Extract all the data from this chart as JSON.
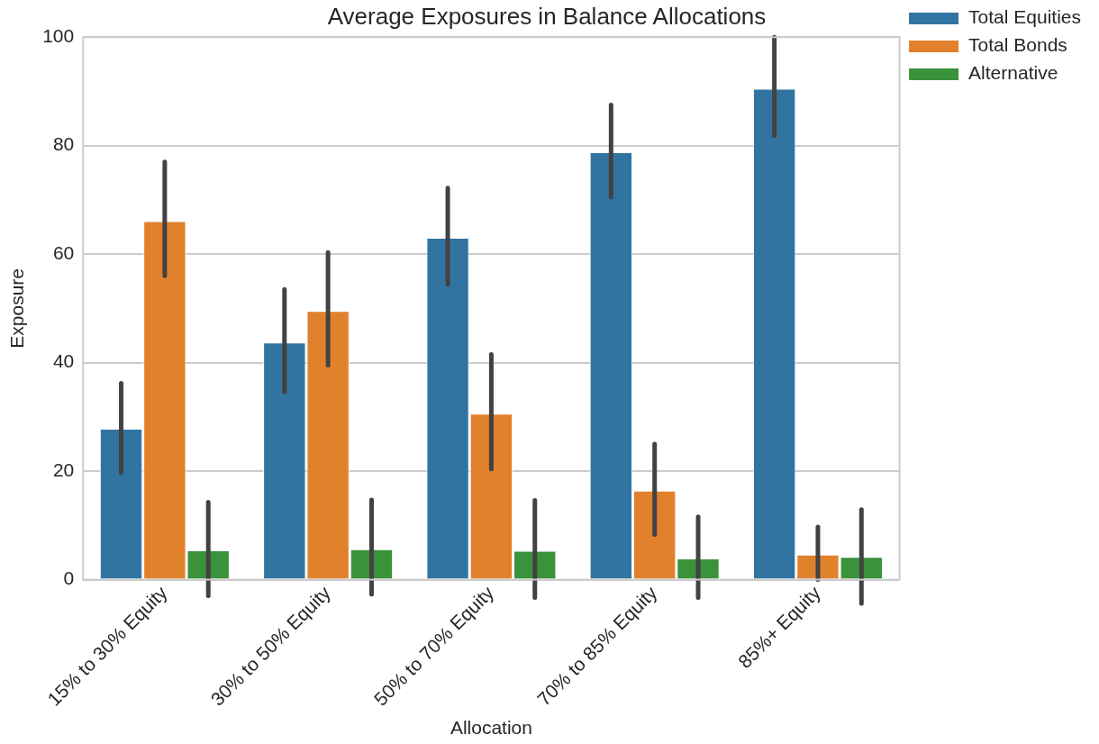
{
  "chart_data": {
    "type": "bar",
    "title": "Average Exposures in Balance Allocations",
    "xlabel": "Allocation",
    "ylabel": "Exposure",
    "categories": [
      "15% to 30% Equity",
      "30% to 50% Equity",
      "50% to 70% Equity",
      "70% to 85% Equity",
      "85%+ Equity"
    ],
    "series": [
      {
        "name": "Total Equities",
        "color": "#3274a1",
        "values": [
          27.8,
          43.7,
          63.0,
          78.8,
          90.5
        ],
        "errors": [
          [
            19.7,
            36.2
          ],
          [
            34.6,
            53.5
          ],
          [
            54.4,
            72.2
          ],
          [
            70.5,
            87.5
          ],
          [
            81.8,
            100
          ]
        ]
      },
      {
        "name": "Total Bonds",
        "color": "#e1812c",
        "values": [
          66.1,
          49.5,
          30.6,
          16.4,
          4.6
        ],
        "errors": [
          [
            56.0,
            77.0
          ],
          [
            39.5,
            60.3
          ],
          [
            20.4,
            41.5
          ],
          [
            8.3,
            25.0
          ],
          [
            0,
            9.7
          ]
        ]
      },
      {
        "name": "Alternative",
        "color": "#3a923a",
        "values": [
          5.4,
          5.6,
          5.3,
          3.9,
          4.2
        ],
        "errors": [
          [
            -3.0,
            14.3
          ],
          [
            -2.7,
            14.7
          ],
          [
            -3.3,
            14.6
          ],
          [
            -3.3,
            11.6
          ],
          [
            -4.4,
            12.9
          ]
        ]
      }
    ],
    "ylim": [
      0,
      100
    ],
    "yticks": [
      0,
      20,
      40,
      60,
      80,
      100
    ],
    "grid": "y",
    "legend": "top right"
  }
}
